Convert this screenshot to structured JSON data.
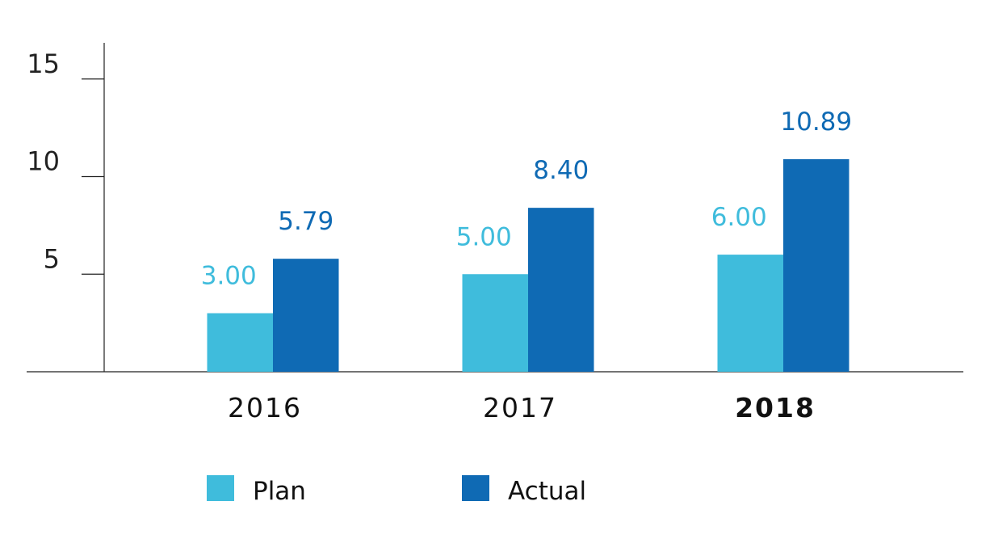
{
  "chart_data": {
    "type": "bar",
    "title": "",
    "xlabel": "",
    "ylabel": "",
    "categories": [
      "2016",
      "2017",
      "2018"
    ],
    "highlight_category": "2018",
    "series": [
      {
        "name": "Plan",
        "values": [
          3.0,
          5.0,
          6.0
        ],
        "labels": [
          "3.00",
          "5.00",
          "6.00"
        ],
        "color": "#3fbcdc"
      },
      {
        "name": "Actual",
        "values": [
          5.79,
          8.4,
          10.89
        ],
        "labels": [
          "5.79",
          "8.40",
          "10.89"
        ],
        "color": "#0f6ab4"
      }
    ],
    "yticks": [
      "5",
      "10",
      "15"
    ],
    "ytick_values": [
      5,
      10,
      15
    ],
    "ylim": [
      0,
      16.8
    ],
    "grid": false,
    "legend": "bottom-left"
  }
}
